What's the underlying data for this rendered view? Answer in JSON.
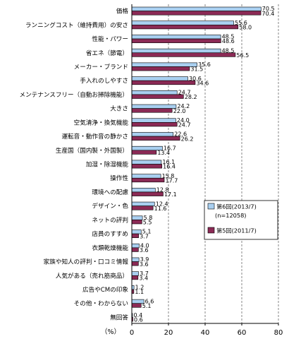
{
  "chart_data": {
    "type": "bar",
    "orientation": "horizontal",
    "categories": [
      "価格",
      "ランニングコスト（維持費用）の安さ",
      "性能・パワー",
      "省エネ（節電）",
      "メーカー・ブランド",
      "手入れのしやすさ",
      "メンテナンスフリー（自動お掃除機能）",
      "大きさ",
      "空気清浄・換気機能",
      "運転音・動作音の静かさ",
      "生産国（国内製・外国製）",
      "加湿・除湿機能",
      "操作性",
      "環境への配慮",
      "デザイン・色",
      "ネットの評判",
      "店員のすすめ",
      "衣類乾燥機能",
      "家族や知人の評判・口コミ情報",
      "人気がある（売れ筋商品）",
      "広告やCMの印象",
      "その他・わからない",
      "無回答"
    ],
    "series": [
      {
        "name": "第6回(2013/7)",
        "values": [
          70.5,
          55.6,
          48.5,
          48.5,
          35.6,
          30.6,
          24.7,
          24.2,
          24.0,
          22.6,
          16.7,
          16.1,
          15.8,
          12.8,
          12.4,
          5.8,
          5.1,
          4.0,
          3.9,
          3.7,
          1.2,
          6.6,
          0.4
        ],
        "color": "#a9cff0"
      },
      {
        "name": "第5回(2011/7)",
        "values": [
          70.4,
          58.0,
          48.6,
          56.5,
          31.5,
          34.6,
          28.2,
          22.0,
          24.7,
          26.2,
          13.4,
          16.4,
          17.7,
          17.1,
          11.6,
          5.5,
          3.7,
          3.6,
          3.6,
          3.4,
          1.1,
          5.1,
          0.6
        ],
        "color": "#8b2a55"
      }
    ],
    "legend": {
      "items": [
        "第6回(2013/7)",
        "(n=12058)",
        "第5回(2011/7)"
      ],
      "position": "bottom-right"
    },
    "x_unit": "（%）",
    "xlim": [
      0,
      80
    ],
    "xticks": [
      0,
      20,
      40,
      60,
      80
    ],
    "grid": "vertical dashed"
  }
}
